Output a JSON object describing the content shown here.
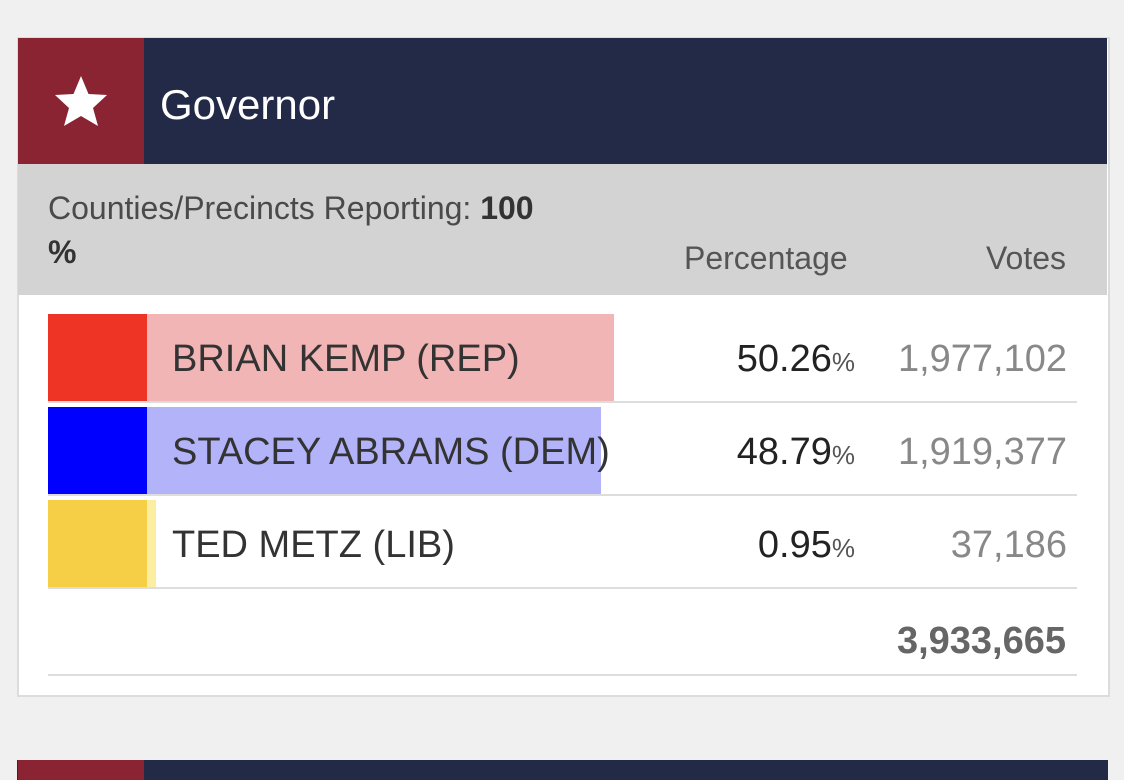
{
  "header": {
    "title": "Governor"
  },
  "reporting": {
    "label": "Counties/Precincts Reporting:",
    "value": "100",
    "unit": "%"
  },
  "columns": {
    "percentage": "Percentage",
    "votes": "Votes"
  },
  "percent_unit": "%",
  "candidates": [
    {
      "name": "BRIAN KEMP (REP)",
      "color": "#ee3424",
      "bar_color": "#f2b5b5",
      "percentage": 50.26,
      "votes": "1,977,102"
    },
    {
      "name": "STACEY ABRAMS (DEM)",
      "color": "#0000ff",
      "bar_color": "#b3b3f9",
      "percentage": 48.79,
      "votes": "1,919,377"
    },
    {
      "name": "TED METZ (LIB)",
      "color": "#f7cf47",
      "bar_color": "#fbeea0",
      "percentage": 0.95,
      "votes": "37,186"
    }
  ],
  "total_votes": "3,933,665"
}
